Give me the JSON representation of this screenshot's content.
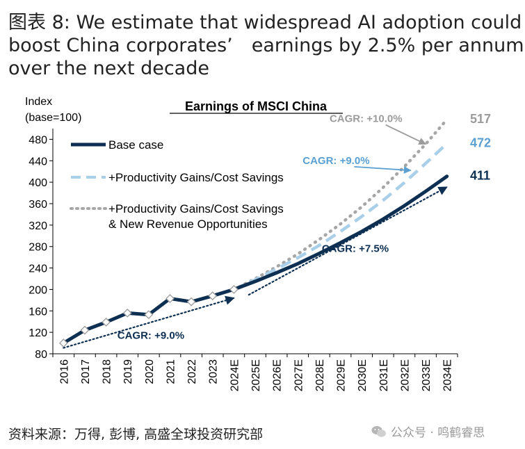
{
  "figure": {
    "title_lines": [
      "图表 8: We estimate that widespread AI adoption could",
      "boost China corporates’　earnings by 2.5% per annum",
      "over the next decade"
    ]
  },
  "source": "资料来源：万得, 彭博, 高盛全球投资研究部",
  "watermark": "公众号 · 鸣鹤睿思",
  "chart_data": {
    "type": "line",
    "title": "Earnings of MSCI China",
    "ylabel_lines": [
      "Index",
      "(base=100)"
    ],
    "xlabel": "",
    "categories": [
      "2016",
      "2017",
      "2018",
      "2019",
      "2020",
      "2021",
      "2022",
      "2023",
      "2024E",
      "2025E",
      "2026E",
      "2027E",
      "2028E",
      "2029E",
      "2030E",
      "2031E",
      "2032E",
      "2033E",
      "2034E"
    ],
    "ylim": [
      80,
      500
    ],
    "yticks": [
      80,
      120,
      160,
      200,
      240,
      280,
      320,
      360,
      400,
      440,
      480
    ],
    "grid": false,
    "legend_position": "top-left",
    "series": [
      {
        "name": "Base case",
        "style": "solid",
        "color": "#0d2f52",
        "values": [
          100,
          124,
          139,
          156,
          153,
          183,
          177,
          188,
          200,
          215,
          231,
          248,
          267,
          287,
          308,
          331,
          356,
          383,
          411
        ],
        "markers_until": 8
      },
      {
        "name": "+Productivity Gains/Cost Savings",
        "style": "dashed",
        "color": "#a9cfe9",
        "values": [
          null,
          null,
          null,
          null,
          null,
          null,
          null,
          null,
          200,
          218,
          238,
          259,
          282,
          308,
          336,
          366,
          399,
          435,
          472
        ]
      },
      {
        "name": "+Productivity Gains/Cost Savings\n& New Revenue Opportunities",
        "legend_lines": [
          "+Productivity Gains/Cost Savings",
          "& New Revenue Opportunities"
        ],
        "style": "dotted",
        "color": "#a6a6a6",
        "values": [
          null,
          null,
          null,
          null,
          null,
          null,
          null,
          null,
          200,
          220,
          242,
          266,
          293,
          322,
          354,
          390,
          429,
          471,
          517
        ]
      }
    ],
    "end_labels": [
      {
        "text": "517",
        "value": 517,
        "color": "#9b9b9b"
      },
      {
        "text": "472",
        "value": 472,
        "color": "#5aa0d2"
      },
      {
        "text": "411",
        "value": 411,
        "color": "#0d2f52"
      }
    ],
    "trend_arrows": [
      {
        "from_index": 0,
        "from_value": 91,
        "to_index": 8,
        "to_value": 184,
        "color": "#0d2f52"
      },
      {
        "from_index": 8.7,
        "from_value": 190,
        "to_index": 18,
        "to_value": 391,
        "color": "#0d2f52"
      }
    ],
    "annotations": [
      {
        "text": "CAGR: +9.0%",
        "color": "#0d2f52",
        "at_index": 4.1,
        "at_value": 108
      },
      {
        "text": "CAGR: +7.5%",
        "color": "#0d2f52",
        "at_index": 13.7,
        "at_value": 270
      },
      {
        "text": "CAGR: +9.0%",
        "color": "#5aa0d2",
        "at_index": 12.8,
        "at_value": 434,
        "arrow_to_index": 16.3,
        "arrow_to_value": 422
      },
      {
        "text": "CAGR: +10.0%",
        "color": "#9b9b9b",
        "at_index": 14.2,
        "at_value": 512,
        "arrow_to_index": 17.0,
        "arrow_to_value": 471
      }
    ]
  }
}
